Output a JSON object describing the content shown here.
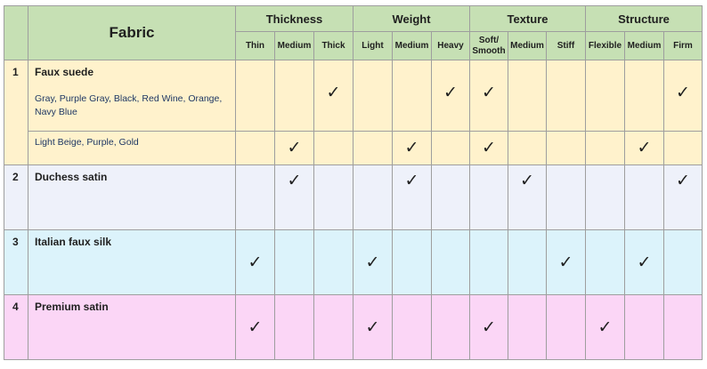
{
  "header": {
    "fabric_label": "Fabric",
    "groups": [
      "Thickness",
      "Weight",
      "Texture",
      "Structure"
    ],
    "subs": [
      "Thin",
      "Medium",
      "Thick",
      "Light",
      "Medium",
      "Heavy",
      "Soft/ Smooth",
      "Medium",
      "Stiff",
      "Flexible",
      "Medium",
      "Firm"
    ]
  },
  "check_symbol": "✓",
  "rows": [
    {
      "num": "1",
      "name": "Faux suede",
      "variants": [
        {
          "label": "Gray, Purple Gray, Black, Red Wine, Orange, Navy Blue",
          "marks": [
            false,
            false,
            true,
            false,
            false,
            true,
            true,
            false,
            false,
            false,
            false,
            true
          ]
        },
        {
          "label": "Light Beige, Purple, Gold",
          "marks": [
            false,
            true,
            false,
            false,
            true,
            false,
            true,
            false,
            false,
            false,
            true,
            false
          ]
        }
      ]
    },
    {
      "num": "2",
      "name": "Duchess satin",
      "marks": [
        false,
        true,
        false,
        false,
        true,
        false,
        false,
        true,
        false,
        false,
        false,
        true
      ]
    },
    {
      "num": "3",
      "name": "Italian faux silk",
      "marks": [
        true,
        false,
        false,
        true,
        false,
        false,
        false,
        false,
        true,
        false,
        true,
        false
      ]
    },
    {
      "num": "4",
      "name": "Premium satin",
      "marks": [
        true,
        false,
        false,
        true,
        false,
        false,
        true,
        false,
        false,
        true,
        false,
        false
      ]
    }
  ],
  "colors": {
    "header": "#c6e0b4",
    "row1": "#fff2cc",
    "row2": "#eef1fa",
    "row3": "#dcf3fb",
    "row4": "#fbd6f6",
    "border": "#9e9e9e"
  }
}
